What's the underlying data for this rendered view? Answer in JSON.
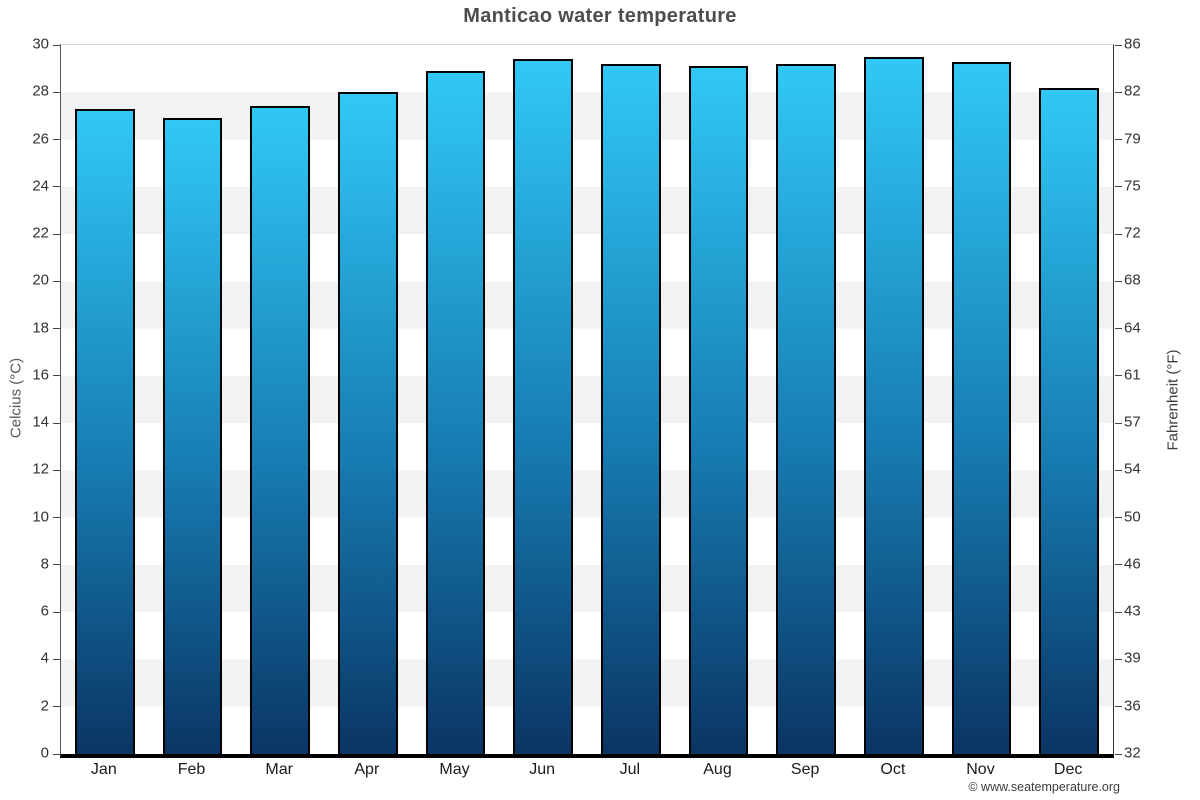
{
  "header": {
    "title": "Manticao water temperature"
  },
  "footer": {
    "credit": "© www.seatemperature.org"
  },
  "chart_data": {
    "type": "bar",
    "title": "Manticao water temperature",
    "categories": [
      "Jan",
      "Feb",
      "Mar",
      "Apr",
      "May",
      "Jun",
      "Jul",
      "Aug",
      "Sep",
      "Oct",
      "Nov",
      "Dec"
    ],
    "values": [
      27.3,
      26.9,
      27.4,
      28.0,
      28.9,
      29.4,
      29.2,
      29.1,
      29.2,
      29.5,
      29.3,
      28.2
    ],
    "xlabel": "",
    "ylabel_left": "Celcius (°C)",
    "ylabel_right": "Fahrenheit (°F)",
    "ylim_left": [
      0,
      30
    ],
    "yticks_left": [
      0,
      2,
      4,
      6,
      8,
      10,
      12,
      14,
      16,
      18,
      20,
      22,
      24,
      26,
      28,
      30
    ],
    "yticks_right_labels": [
      "32",
      "36",
      "39",
      "43",
      "46",
      "50",
      "54",
      "57",
      "61",
      "64",
      "68",
      "72",
      "75",
      "79",
      "82",
      "86"
    ],
    "grid": "alternating horizontal bands every 2 degrees C, white and light gray",
    "legend": "none",
    "colors": {
      "bar_gradient_top": "#31c8f6",
      "bar_gradient_bottom": "#0a3564",
      "bar_border": "#000000",
      "band_light": "#ffffff",
      "band_dark": "#f2f2f2",
      "title_text": "#4d4d4d",
      "tick_text": "#333333",
      "baseline": "#000000"
    }
  }
}
